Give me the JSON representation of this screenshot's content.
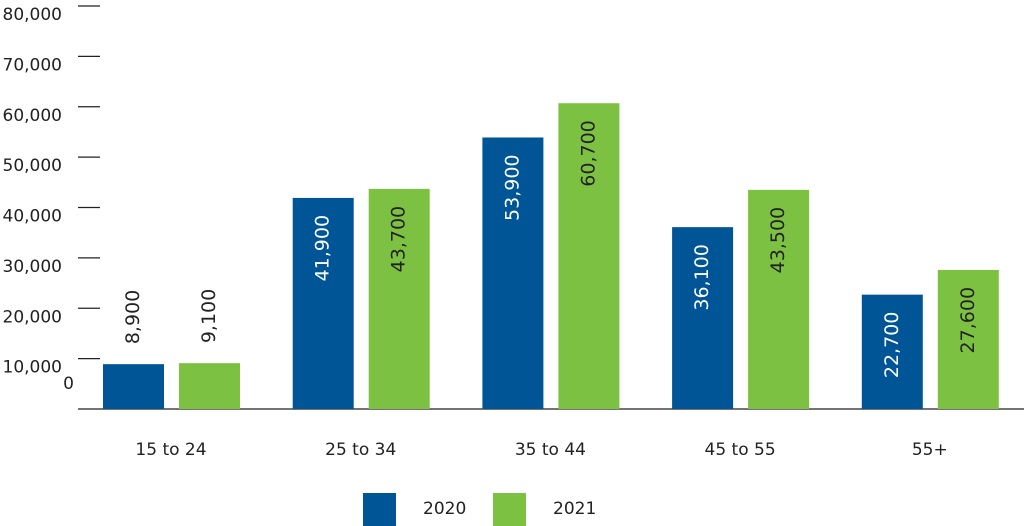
{
  "chart_data": {
    "type": "bar",
    "categories": [
      "15 to 24",
      "25 to 34",
      "35 to 44",
      "45 to 55",
      "55+"
    ],
    "series": [
      {
        "name": "2020",
        "color": "#005596",
        "values": [
          8900,
          41900,
          53900,
          36100,
          22700
        ],
        "value_labels": [
          "8,900",
          "41,900",
          "53,900",
          "36,100",
          "22,700"
        ]
      },
      {
        "name": "2021",
        "color": "#7dc142",
        "values": [
          9100,
          43700,
          60700,
          43500,
          27600
        ],
        "value_labels": [
          "9,100",
          "43,700",
          "60,700",
          "43,500",
          "27,600"
        ]
      }
    ],
    "ylim": [
      0,
      80000
    ],
    "yticks": [
      0,
      {
        "value": 10000,
        "label": "10,000"
      },
      {
        "value": 20000,
        "label": "20,000"
      },
      {
        "value": 30000,
        "label": "30,000"
      },
      {
        "value": 40000,
        "label": "40,000"
      },
      {
        "value": 50000,
        "label": "50,000"
      },
      {
        "value": 60000,
        "label": "60,000"
      },
      {
        "value": 70000,
        "label": "70,000"
      },
      {
        "value": 80000,
        "label": "80,000"
      }
    ],
    "legend": "bottom"
  }
}
